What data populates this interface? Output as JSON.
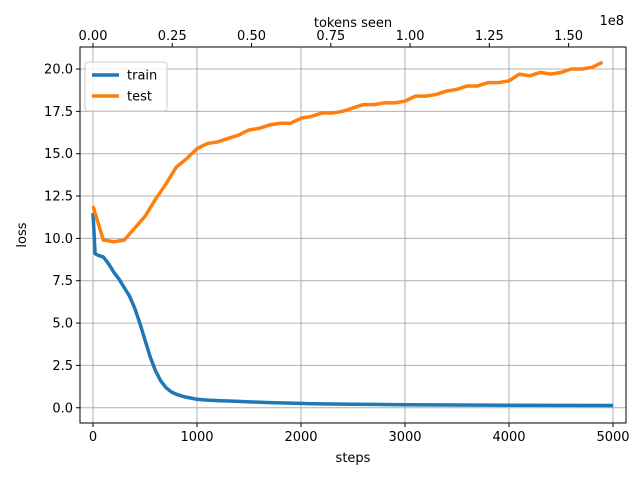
{
  "chart_data": {
    "type": "line",
    "xlabel": "steps",
    "ylabel": "loss",
    "top_xlabel": "tokens seen",
    "top_offset_label": "1e8",
    "xlim": [
      -125,
      5125
    ],
    "ylim": [
      -0.9,
      21.3
    ],
    "top_xlim": [
      -0.041,
      1.681
    ],
    "x_ticks": [
      0,
      1000,
      2000,
      3000,
      4000,
      5000
    ],
    "x_tick_labels": [
      "0",
      "1000",
      "2000",
      "3000",
      "4000",
      "5000"
    ],
    "y_ticks": [
      0,
      2.5,
      5,
      7.5,
      10,
      12.5,
      15,
      17.5,
      20
    ],
    "y_tick_labels": [
      "0.0",
      "2.5",
      "5.0",
      "7.5",
      "10.0",
      "12.5",
      "15.0",
      "17.5",
      "20.0"
    ],
    "top_x_ticks": [
      0,
      0.25,
      0.5,
      0.75,
      1.0,
      1.25,
      1.5
    ],
    "top_x_tick_labels": [
      "0.00",
      "0.25",
      "0.50",
      "0.75",
      "1.00",
      "1.25",
      "1.50"
    ],
    "grid": true,
    "legend_position": "upper-left",
    "series": [
      {
        "name": "train",
        "color": "#1f77b4",
        "x": [
          0,
          20,
          50,
          100,
          150,
          200,
          250,
          300,
          350,
          400,
          450,
          500,
          550,
          600,
          650,
          700,
          750,
          800,
          850,
          900,
          950,
          1000,
          1100,
          1200,
          1300,
          1400,
          1500,
          1700,
          1900,
          2100,
          2500,
          3000,
          3500,
          4000,
          4500,
          5000
        ],
        "y": [
          11.5,
          9.1,
          9.0,
          8.9,
          8.5,
          8.0,
          7.6,
          7.1,
          6.6,
          5.9,
          5.0,
          4.0,
          3.0,
          2.2,
          1.6,
          1.2,
          0.95,
          0.8,
          0.7,
          0.62,
          0.56,
          0.5,
          0.45,
          0.42,
          0.4,
          0.38,
          0.35,
          0.3,
          0.27,
          0.24,
          0.21,
          0.18,
          0.16,
          0.15,
          0.14,
          0.13
        ]
      },
      {
        "name": "test",
        "color": "#ff7f0e",
        "x": [
          0,
          100,
          200,
          300,
          400,
          500,
          600,
          700,
          800,
          900,
          1000,
          1100,
          1200,
          1300,
          1400,
          1500,
          1600,
          1700,
          1800,
          1900,
          2000,
          2100,
          2200,
          2300,
          2400,
          2500,
          2600,
          2700,
          2800,
          2900,
          3000,
          3100,
          3200,
          3300,
          3400,
          3500,
          3600,
          3700,
          3800,
          3900,
          4000,
          4100,
          4200,
          4300,
          4400,
          4500,
          4600,
          4700,
          4800,
          4900
        ],
        "y": [
          11.9,
          9.9,
          9.8,
          9.9,
          10.6,
          11.3,
          12.3,
          13.2,
          14.2,
          14.7,
          15.3,
          15.6,
          15.7,
          15.9,
          16.1,
          16.4,
          16.5,
          16.7,
          16.8,
          16.8,
          17.1,
          17.2,
          17.4,
          17.4,
          17.5,
          17.7,
          17.9,
          17.9,
          18.0,
          18.0,
          18.1,
          18.4,
          18.4,
          18.5,
          18.7,
          18.8,
          19.0,
          19.0,
          19.2,
          19.2,
          19.3,
          19.7,
          19.6,
          19.8,
          19.7,
          19.8,
          20.0,
          20.0,
          20.1,
          20.4
        ]
      }
    ]
  }
}
